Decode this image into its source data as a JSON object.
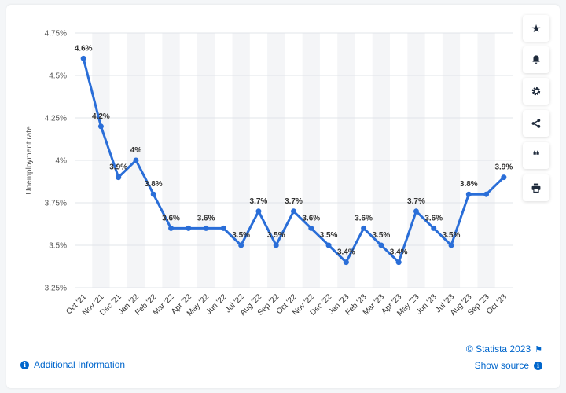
{
  "chart_data": {
    "type": "line",
    "title": "",
    "ylabel": "Unemployment rate",
    "xlabel": "",
    "categories": [
      "Oct '21",
      "Nov '21",
      "Dec '21",
      "Jan '22",
      "Feb '22",
      "Mar '22",
      "Apr '22",
      "May '22",
      "Jun '22",
      "Jul '22",
      "Aug '22",
      "Sep '22",
      "Oct '22",
      "Nov '22",
      "Dec '22",
      "Jan '23",
      "Feb '23",
      "Mar '23",
      "Apr '23",
      "May '23",
      "Jun '23",
      "Jul '23",
      "Aug '23",
      "Sep '23",
      "Oct '23"
    ],
    "values": [
      4.6,
      4.2,
      3.9,
      4.0,
      3.8,
      3.6,
      3.6,
      3.6,
      3.6,
      3.5,
      3.7,
      3.5,
      3.7,
      3.6,
      3.5,
      3.4,
      3.6,
      3.5,
      3.4,
      3.7,
      3.6,
      3.5,
      3.8,
      3.8,
      3.9
    ],
    "data_labels": [
      "4.6%",
      "4.2%",
      "3.9%",
      "4%",
      "3.8%",
      "3.6%",
      "",
      "3.6%",
      "",
      "3.5%",
      "3.7%",
      "3.5%",
      "3.7%",
      "3.6%",
      "3.5%",
      "3.4%",
      "3.6%",
      "3.5%",
      "3.4%",
      "3.7%",
      "3.6%",
      "3.5%",
      "3.8%",
      "",
      "3.9%"
    ],
    "yticks": [
      3.25,
      3.5,
      3.75,
      4.0,
      4.25,
      4.5,
      4.75
    ],
    "ytick_labels": [
      "3.25%",
      "3.5%",
      "3.75%",
      "4%",
      "4.25%",
      "4.5%",
      "4.75%"
    ],
    "ylim": [
      3.25,
      4.75
    ],
    "grid": true,
    "line_color": "#2a6ed8",
    "band_color": "#f4f5f7"
  },
  "sidebar": {
    "buttons": [
      {
        "name": "star-icon",
        "label": "★"
      },
      {
        "name": "bell-icon",
        "label": ""
      },
      {
        "name": "gear-icon",
        "label": ""
      },
      {
        "name": "share-icon",
        "label": ""
      },
      {
        "name": "quote-icon",
        "label": "❝"
      },
      {
        "name": "print-icon",
        "label": ""
      }
    ]
  },
  "footer": {
    "additional_info": "Additional Information",
    "copyright": "© Statista 2023",
    "show_source": "Show source",
    "info_glyph": "i",
    "flag_glyph": "⚑"
  }
}
